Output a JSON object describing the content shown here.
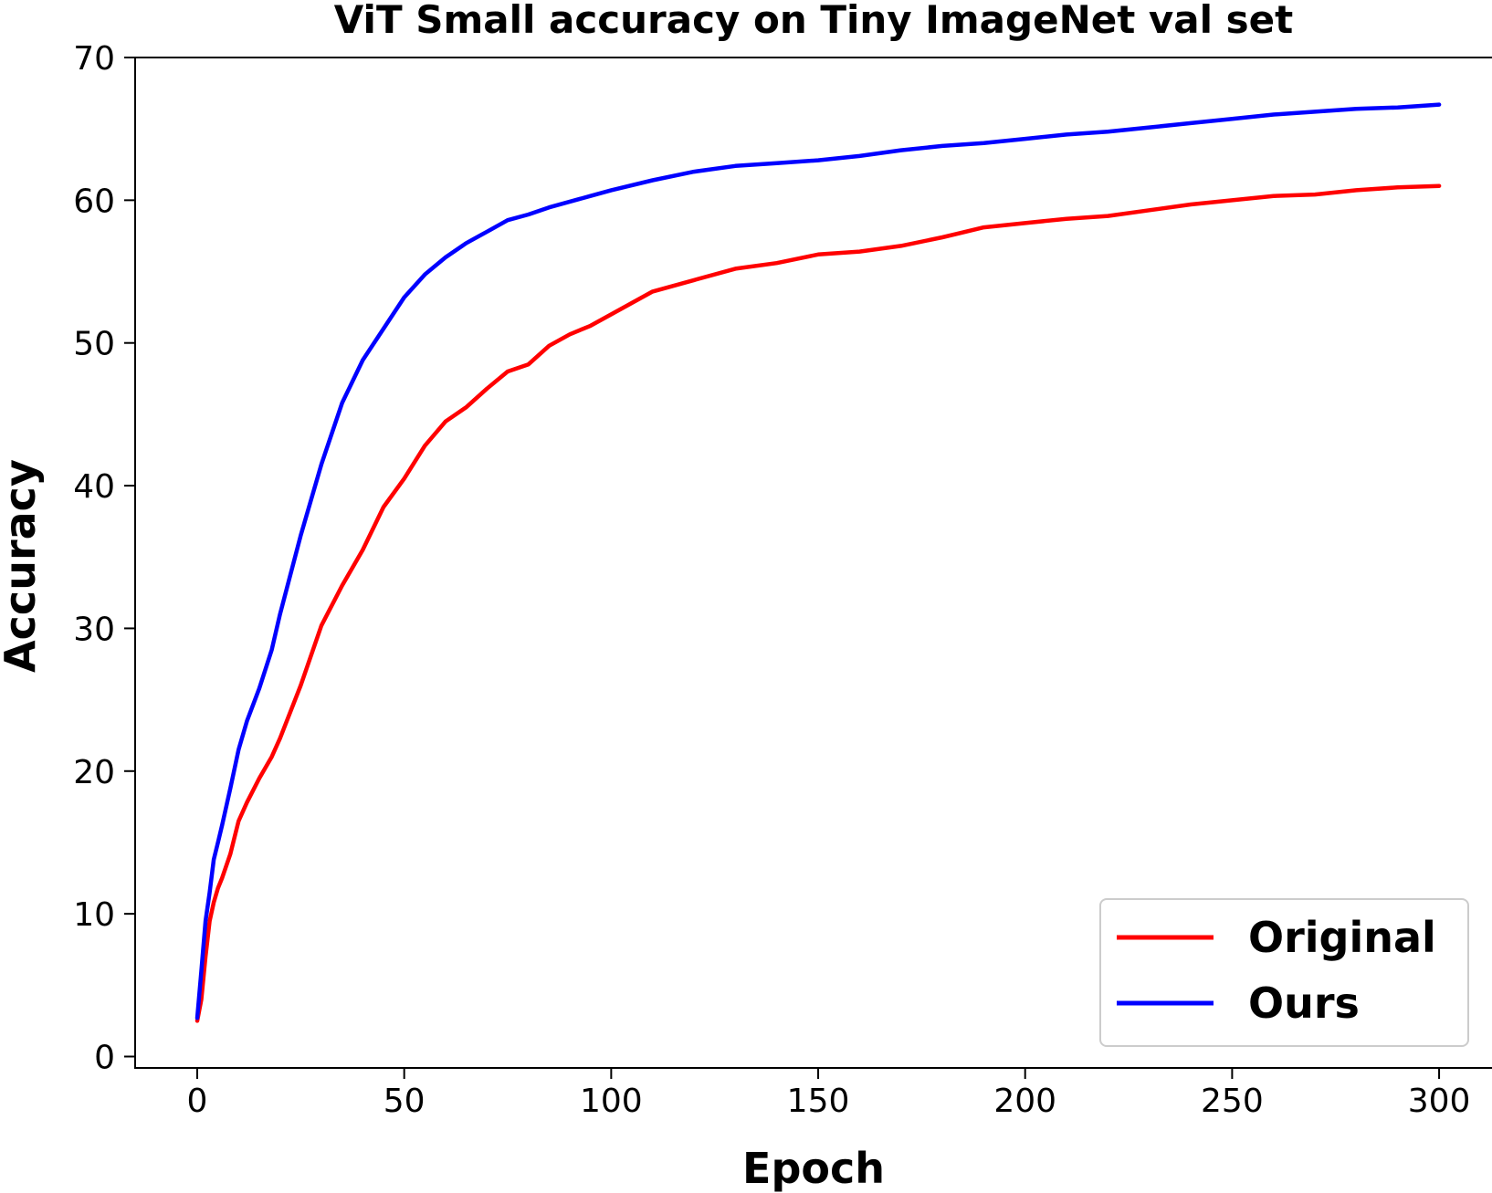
{
  "chart_data": {
    "type": "line",
    "title": "ViT Small accuracy on Tiny ImageNet val set",
    "xlabel": "Epoch",
    "ylabel": "Accuracy",
    "xlim": [
      -15,
      313
    ],
    "ylim": [
      -0.8,
      70
    ],
    "xticks": [
      0,
      50,
      100,
      150,
      200,
      250,
      300
    ],
    "yticks": [
      0,
      10,
      20,
      30,
      40,
      50,
      60,
      70
    ],
    "grid": false,
    "legend_position": "lower-right",
    "x": [
      0,
      1,
      2,
      3,
      4,
      5,
      6,
      8,
      10,
      12,
      15,
      18,
      20,
      25,
      30,
      35,
      40,
      45,
      50,
      55,
      60,
      65,
      70,
      75,
      80,
      85,
      90,
      95,
      100,
      110,
      120,
      130,
      140,
      150,
      160,
      170,
      180,
      190,
      200,
      210,
      220,
      230,
      240,
      250,
      260,
      270,
      280,
      290,
      300
    ],
    "series": [
      {
        "name": "Original",
        "color": "#ff0000",
        "values": [
          2.5,
          4.0,
          7.0,
          9.5,
          10.8,
          11.8,
          12.5,
          14.2,
          16.5,
          17.8,
          19.5,
          21.0,
          22.3,
          26.0,
          30.2,
          33.0,
          35.5,
          38.5,
          40.5,
          42.8,
          44.5,
          45.5,
          46.8,
          48.0,
          48.5,
          49.8,
          50.6,
          51.2,
          52.0,
          53.6,
          54.4,
          55.2,
          55.6,
          56.2,
          56.4,
          56.8,
          57.4,
          58.1,
          58.4,
          58.7,
          58.9,
          59.3,
          59.7,
          60.0,
          60.3,
          60.4,
          60.7,
          60.9,
          61.0
        ]
      },
      {
        "name": "Ours",
        "color": "#0000ff",
        "values": [
          2.7,
          6.0,
          9.5,
          11.5,
          13.8,
          15.0,
          16.2,
          18.8,
          21.5,
          23.5,
          25.8,
          28.5,
          31.0,
          36.5,
          41.5,
          45.8,
          48.8,
          51.0,
          53.2,
          54.8,
          56.0,
          57.0,
          57.8,
          58.6,
          59.0,
          59.5,
          59.9,
          60.3,
          60.7,
          61.4,
          62.0,
          62.4,
          62.6,
          62.8,
          63.1,
          63.5,
          63.8,
          64.0,
          64.3,
          64.6,
          64.8,
          65.1,
          65.4,
          65.7,
          66.0,
          66.2,
          66.4,
          66.5,
          66.7
        ]
      }
    ]
  }
}
